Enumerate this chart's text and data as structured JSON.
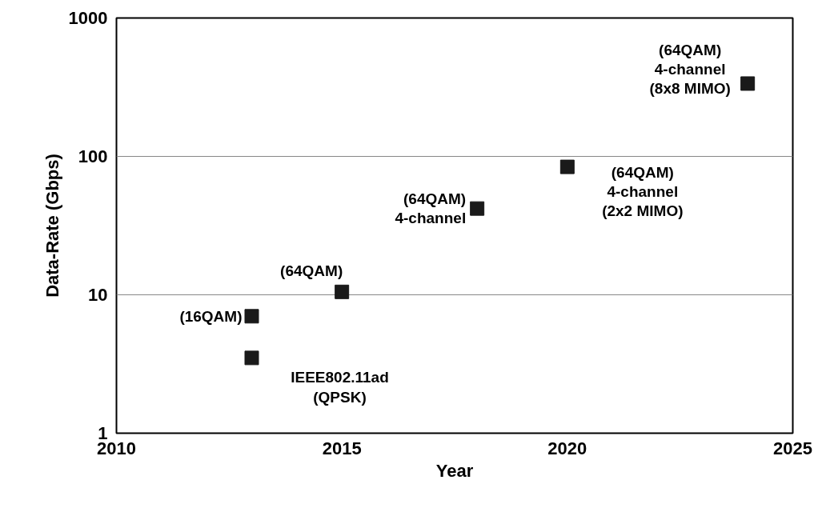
{
  "chart_data": {
    "type": "scatter",
    "xlabel": "Year",
    "ylabel": "Data-Rate (Gbps)",
    "x": [
      2013,
      2013,
      2015,
      2018,
      2020,
      2024
    ],
    "series": [
      {
        "color": "#1a1a1a",
        "values": [
          7,
          3.5,
          10.5,
          42,
          84,
          336
        ]
      }
    ],
    "marker": "square",
    "log": "y",
    "grid": "y",
    "xlim": [
      2010,
      2025
    ],
    "xticks": [
      2010,
      2015,
      2020,
      2025
    ],
    "ylim": [
      1,
      1000
    ],
    "yticks": [
      1,
      10,
      100,
      1000
    ],
    "annotations": [
      {
        "text": "(16QAM)",
        "x": 2013,
        "y": 7
      },
      {
        "text": "IEEE802.11ad\n(QPSK)",
        "x": 2013,
        "y": 3.5
      },
      {
        "text": "(64QAM)",
        "x": 2015,
        "y": 10.5
      },
      {
        "text": "(64QAM)\n4-channel",
        "x": 2018,
        "y": 42
      },
      {
        "text": "(64QAM)\n4-channel\n(2x2 MIMO)",
        "x": 2020,
        "y": 84
      },
      {
        "text": "(64QAM)\n4-channel\n(8x8 MIMO)",
        "x": 2024,
        "y": 336
      }
    ]
  }
}
